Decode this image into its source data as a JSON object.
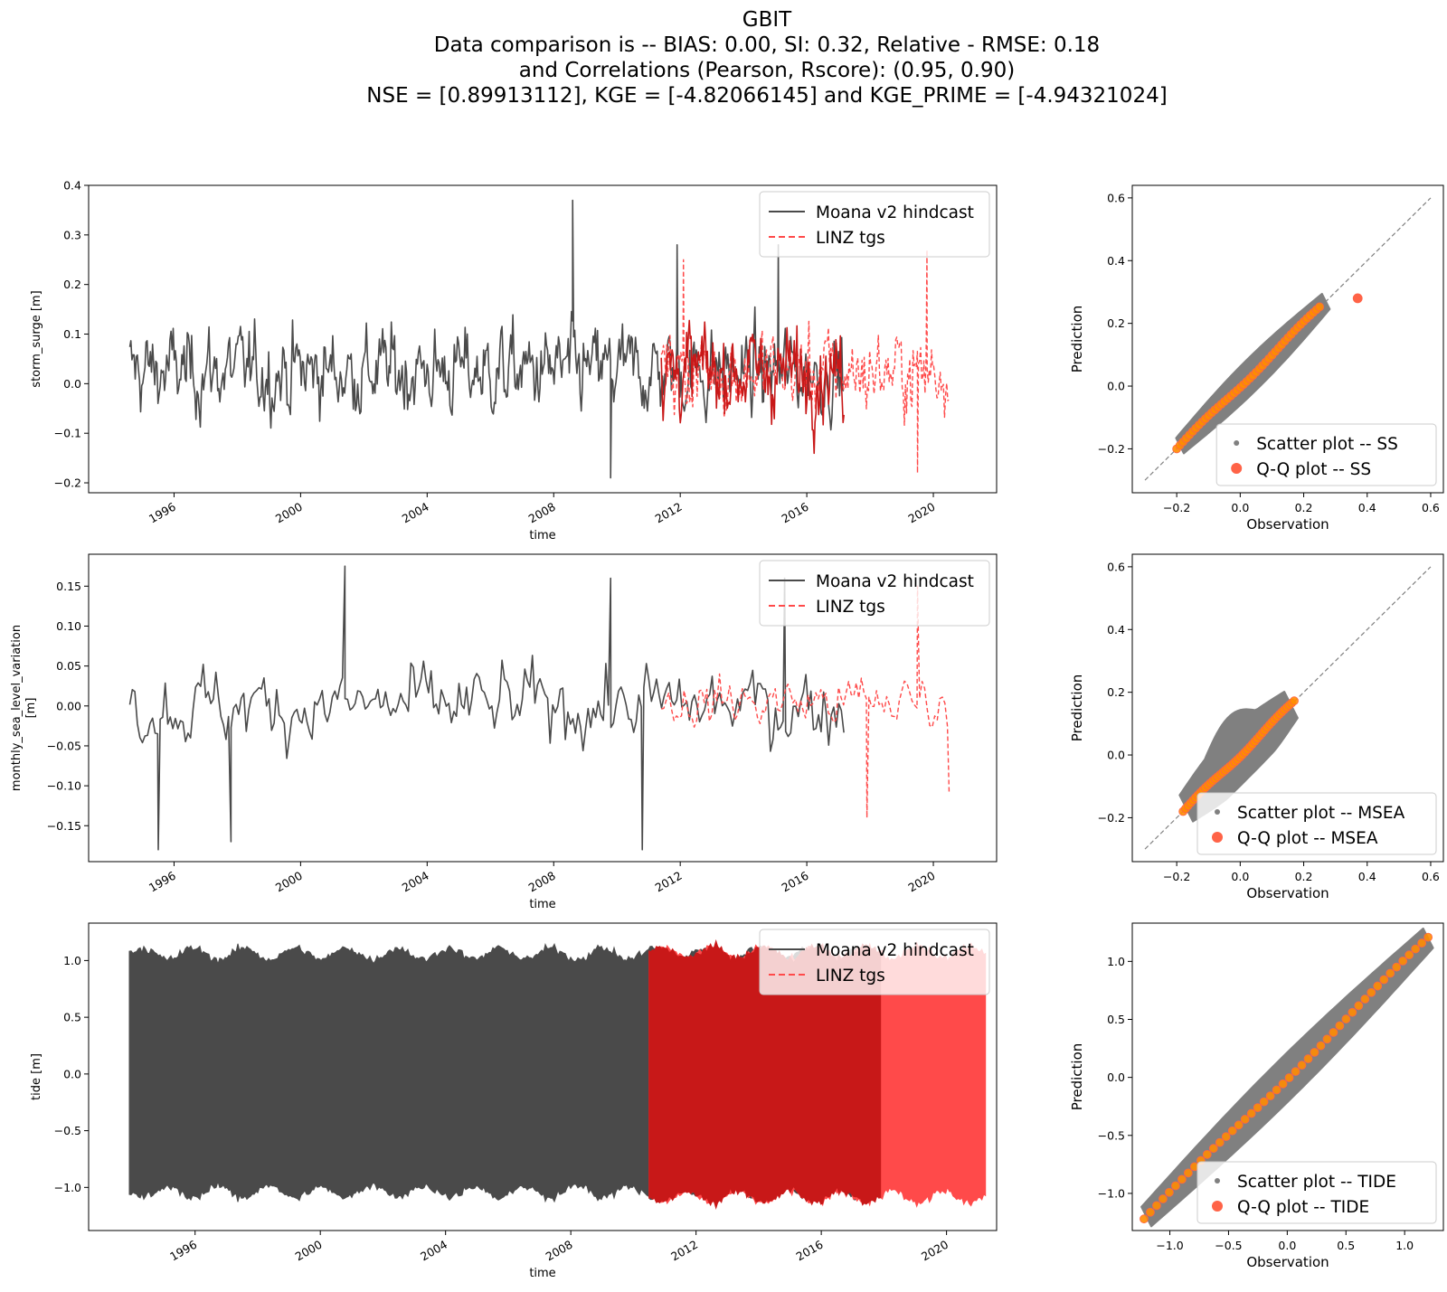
{
  "title": {
    "lines": [
      "GBIT",
      "Data comparison is   --   BIAS: 0.00, SI: 0.32, Relative - RMSE: 0.18",
      "and Correlations (Pearson, Rscore): (0.95, 0.90)",
      "NSE = [0.89913112], KGE = [-4.82066145] and KGE_PRIME = [-4.94321024]"
    ]
  },
  "colors": {
    "model": "#4a4a4a",
    "obs": "#ff4a4a",
    "overlap": "#c81818",
    "scatter": "#808080",
    "qq_fill": "#ff8c00",
    "qq_edge": "#ff6347",
    "diag": "#808080"
  },
  "chart_data": [
    {
      "type": "line",
      "id": "ss_ts",
      "xlabel": "time",
      "ylabel": "storm_surge [m]",
      "xlim": [
        1993.3,
        2022.0
      ],
      "ylim": [
        -0.22,
        0.4
      ],
      "xticks": [
        1996,
        2000,
        2004,
        2008,
        2012,
        2016,
        2020
      ],
      "xticklabels": [
        "1996",
        "2000",
        "2004",
        "2008",
        "2012",
        "2016",
        "2020"
      ],
      "yticks": [
        -0.2,
        -0.1,
        0.0,
        0.1,
        0.2,
        0.3,
        0.4
      ],
      "yticklabels": [
        "−0.2",
        "−0.1",
        "0.0",
        "0.1",
        "0.2",
        "0.3",
        "0.4"
      ],
      "series": [
        {
          "name": "Moana v2 hindcast",
          "range": [
            1994.6,
            2017.2
          ],
          "envelope": [
            -0.14,
            0.19
          ],
          "peaks": [
            [
              2008.6,
              0.37
            ],
            [
              2009.8,
              -0.19
            ],
            [
              2011.9,
              0.28
            ],
            [
              2015.1,
              0.28
            ]
          ]
        },
        {
          "name": "LINZ tgs",
          "range": [
            2011.4,
            2020.5
          ],
          "envelope": [
            -0.13,
            0.18
          ],
          "peaks": [
            [
              2012.1,
              0.25
            ],
            [
              2019.8,
              0.27
            ],
            [
              2019.5,
              -0.18
            ]
          ]
        }
      ],
      "legend": "upper right"
    },
    {
      "type": "scatter",
      "id": "ss_sc",
      "xlabel": "Observation",
      "ylabel": "Prediction",
      "xlim": [
        -0.34,
        0.64
      ],
      "ylim": [
        -0.34,
        0.64
      ],
      "xticks": [
        -0.2,
        0.0,
        0.2,
        0.4,
        0.6
      ],
      "xticklabels": [
        "−0.2",
        "0.0",
        "0.2",
        "0.4",
        "0.6"
      ],
      "yticks": [
        -0.2,
        0.0,
        0.2,
        0.4,
        0.6
      ],
      "yticklabels": [
        "−0.2",
        "0.0",
        "0.2",
        "0.4",
        "0.6"
      ],
      "diag": [
        -0.3,
        0.6
      ],
      "scatter_range": [
        -0.19,
        0.27
      ],
      "scatter_spread": 0.035,
      "qq_range": [
        -0.2,
        0.25
      ],
      "qq_outlier": [
        0.37,
        0.28
      ],
      "series": [
        {
          "name": "Scatter plot -- SS"
        },
        {
          "name": "Q-Q plot -- SS"
        }
      ],
      "legend": "lower right"
    },
    {
      "type": "line",
      "id": "msl_ts",
      "xlabel": "time",
      "ylabel": [
        "monthly_sea_level_variation",
        "[m]"
      ],
      "xlim": [
        1993.3,
        2022.0
      ],
      "ylim": [
        -0.195,
        0.19
      ],
      "xticks": [
        1996,
        2000,
        2004,
        2008,
        2012,
        2016,
        2020
      ],
      "xticklabels": [
        "1996",
        "2000",
        "2004",
        "2008",
        "2012",
        "2016",
        "2020"
      ],
      "yticks": [
        -0.15,
        -0.1,
        -0.05,
        0.0,
        0.05,
        0.1,
        0.15
      ],
      "yticklabels": [
        "−0.15",
        "−0.10",
        "−0.05",
        "0.00",
        "0.05",
        "0.10",
        "0.15"
      ],
      "series": [
        {
          "name": "Moana v2 hindcast",
          "range": [
            1994.6,
            2017.2
          ],
          "envelope": [
            -0.09,
            0.09
          ],
          "peaks": [
            [
              1995.5,
              -0.18
            ],
            [
              1997.8,
              -0.17
            ],
            [
              2001.4,
              0.175
            ],
            [
              2009.8,
              0.16
            ],
            [
              2010.8,
              -0.18
            ],
            [
              2015.3,
              0.16
            ]
          ]
        },
        {
          "name": "LINZ tgs",
          "range": [
            2011.4,
            2020.5
          ],
          "envelope": [
            -0.06,
            0.07
          ],
          "peaks": [
            [
              2017.9,
              -0.14
            ],
            [
              2019.5,
              0.15
            ],
            [
              2020.5,
              -0.11
            ]
          ]
        }
      ],
      "legend": "upper right"
    },
    {
      "type": "scatter",
      "id": "msl_sc",
      "xlabel": "Observation",
      "ylabel": "Prediction",
      "xlim": [
        -0.34,
        0.64
      ],
      "ylim": [
        -0.34,
        0.64
      ],
      "xticks": [
        -0.2,
        0.0,
        0.2,
        0.4,
        0.6
      ],
      "xticklabels": [
        "−0.2",
        "0.0",
        "0.2",
        "0.4",
        "0.6"
      ],
      "yticks": [
        -0.2,
        0.0,
        0.2,
        0.4,
        0.6
      ],
      "yticklabels": [
        "−0.2",
        "0.0",
        "0.2",
        "0.4",
        "0.6"
      ],
      "diag": [
        -0.3,
        0.6
      ],
      "scatter_range": [
        -0.17,
        0.16
      ],
      "scatter_spread": 0.06,
      "qq_range": [
        -0.18,
        0.17
      ],
      "series": [
        {
          "name": "Scatter plot -- MSEA"
        },
        {
          "name": "Q-Q plot -- MSEA"
        }
      ],
      "legend": "lower right"
    },
    {
      "type": "line",
      "id": "tide_ts",
      "xlabel": "time",
      "ylabel": "tide [m]",
      "xlim": [
        1992.6,
        2021.6
      ],
      "ylim": [
        -1.38,
        1.33
      ],
      "xticks": [
        1996,
        2000,
        2004,
        2008,
        2012,
        2016,
        2020
      ],
      "xticklabels": [
        "1996",
        "2000",
        "2004",
        "2008",
        "2012",
        "2016",
        "2020"
      ],
      "yticks": [
        -1.0,
        -0.5,
        0.0,
        0.5,
        1.0
      ],
      "yticklabels": [
        "−1.0",
        "−0.5",
        "0.0",
        "0.5",
        "1.0"
      ],
      "series": [
        {
          "name": "Moana v2 hindcast",
          "range": [
            1993.9,
            2017.9
          ],
          "envelope": [
            -1.1,
            1.12
          ]
        },
        {
          "name": "LINZ tgs",
          "range": [
            2010.5,
            2021.3
          ],
          "envelope": [
            -1.14,
            1.13
          ]
        }
      ],
      "legend": "upper right"
    },
    {
      "type": "scatter",
      "id": "tide_sc",
      "xlabel": "Observation",
      "ylabel": "Prediction",
      "xlim": [
        -1.32,
        1.33
      ],
      "ylim": [
        -1.32,
        1.33
      ],
      "xticks": [
        -1.0,
        -0.5,
        0.0,
        0.5,
        1.0
      ],
      "xticklabels": [
        "−1.0",
        "−0.5",
        "0.0",
        "0.5",
        "1.0"
      ],
      "yticks": [
        -1.0,
        -0.5,
        0.0,
        0.5,
        1.0
      ],
      "yticklabels": [
        "−1.0",
        "−0.5",
        "0.0",
        "0.5",
        "1.0"
      ],
      "diag": [
        -1.2,
        1.2
      ],
      "scatter_range": [
        -1.2,
        1.2
      ],
      "scatter_spread": 0.12,
      "qq_range": [
        -1.22,
        1.2
      ],
      "series": [
        {
          "name": "Scatter plot -- TIDE"
        },
        {
          "name": "Q-Q plot -- TIDE"
        }
      ],
      "legend": "lower right"
    }
  ]
}
